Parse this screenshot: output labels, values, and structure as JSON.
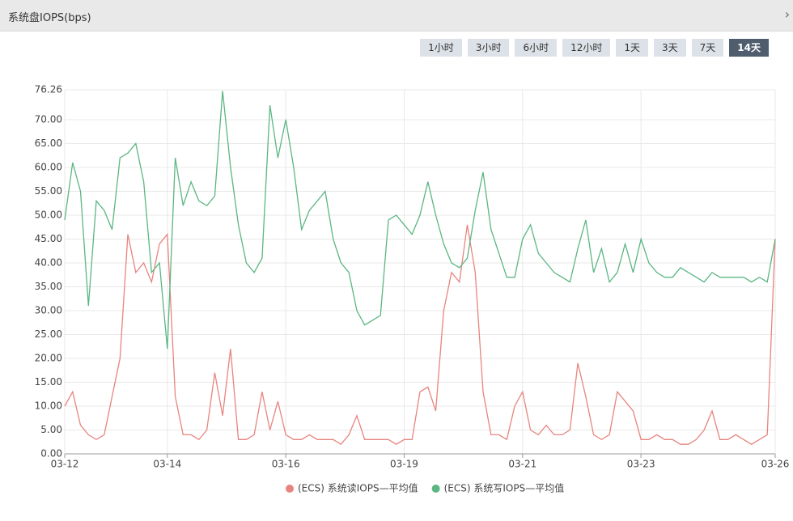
{
  "header": {
    "title": "系统盘IOPS(bps)"
  },
  "buttons": [
    "1小时",
    "3小时",
    "6小时",
    "12小时",
    "1天",
    "3天",
    "7天",
    "14天"
  ],
  "active_button": 7,
  "chart_data": {
    "type": "line",
    "x": [
      0,
      1,
      2,
      3,
      4,
      5,
      6,
      7,
      8,
      9,
      10,
      11,
      12,
      13,
      14,
      15,
      16,
      17,
      18,
      19,
      20,
      21,
      22,
      23,
      24,
      25,
      26,
      27,
      28,
      29,
      30,
      31,
      32,
      33,
      34,
      35,
      36,
      37,
      38,
      39,
      40,
      41,
      42,
      43,
      44,
      45,
      46,
      47,
      48,
      49,
      50,
      51,
      52,
      53,
      54,
      55,
      56,
      57,
      58,
      59,
      60,
      61,
      62,
      63,
      64,
      65,
      66,
      67,
      68,
      69,
      70,
      71,
      72,
      73,
      74,
      75,
      76,
      77,
      78,
      79,
      80,
      81,
      82,
      83,
      84,
      85,
      86,
      87,
      88,
      89,
      90
    ],
    "series": [
      {
        "name": "(ECS) 系统读IOPS—平均值",
        "color": "#e8847e",
        "values": [
          10,
          13,
          6,
          4,
          3,
          4,
          12,
          20,
          46,
          38,
          40,
          36,
          44,
          46,
          12,
          4,
          4,
          3,
          5,
          17,
          8,
          22,
          3,
          3,
          4,
          13,
          5,
          11,
          4,
          3,
          3,
          4,
          3,
          3,
          3,
          2,
          4,
          8,
          3,
          3,
          3,
          3,
          2,
          3,
          3,
          13,
          14,
          9,
          30,
          38,
          36,
          48,
          38,
          13,
          4,
          4,
          3,
          10,
          13,
          5,
          4,
          6,
          4,
          4,
          5,
          19,
          12,
          4,
          3,
          4,
          13,
          11,
          9,
          3,
          3,
          4,
          3,
          3,
          2,
          2,
          3,
          5,
          9,
          3,
          3,
          4,
          3,
          2,
          3,
          4,
          45
        ]
      },
      {
        "name": "(ECS) 系统写IOPS—平均值",
        "color": "#5bb683",
        "values": [
          49,
          61,
          55,
          31,
          53,
          51,
          47,
          62,
          63,
          65,
          57,
          38,
          40,
          22,
          62,
          52,
          57,
          53,
          52,
          54,
          76,
          60,
          48,
          40,
          38,
          41,
          73,
          62,
          70,
          60,
          47,
          51,
          53,
          55,
          45,
          40,
          38,
          30,
          27,
          28,
          29,
          49,
          50,
          48,
          46,
          50,
          57,
          50,
          44,
          40,
          39,
          41,
          51,
          59,
          47,
          42,
          37,
          37,
          45,
          48,
          42,
          40,
          38,
          37,
          36,
          43,
          49,
          38,
          43,
          36,
          38,
          44,
          38,
          45,
          40,
          38,
          37,
          37,
          39,
          38,
          37,
          36,
          38,
          37,
          37,
          37,
          37,
          36,
          37,
          36,
          45
        ]
      }
    ],
    "xlim": [
      0,
      90
    ],
    "xticks": [
      {
        "value": 0,
        "label": "03-12"
      },
      {
        "value": 13,
        "label": "03-14"
      },
      {
        "value": 28,
        "label": "03-16"
      },
      {
        "value": 43,
        "label": "03-19"
      },
      {
        "value": 58,
        "label": "03-21"
      },
      {
        "value": 73,
        "label": "03-23"
      },
      {
        "value": 90,
        "label": "03-26"
      }
    ],
    "ylim": [
      0,
      76.26
    ],
    "yticks": [
      {
        "value": 0,
        "label": "0.00"
      },
      {
        "value": 5,
        "label": "5.00"
      },
      {
        "value": 10,
        "label": "10.00"
      },
      {
        "value": 15,
        "label": "15.00"
      },
      {
        "value": 20,
        "label": "20.00"
      },
      {
        "value": 25,
        "label": "25.00"
      },
      {
        "value": 30,
        "label": "30.00"
      },
      {
        "value": 35,
        "label": "35.00"
      },
      {
        "value": 40,
        "label": "40.00"
      },
      {
        "value": 45,
        "label": "45.00"
      },
      {
        "value": 50,
        "label": "50.00"
      },
      {
        "value": 55,
        "label": "55.00"
      },
      {
        "value": 60,
        "label": "60.00"
      },
      {
        "value": 65,
        "label": "65.00"
      },
      {
        "value": 70,
        "label": "70.00"
      },
      {
        "value": 76.26,
        "label": "76.26"
      }
    ],
    "grid": true
  }
}
